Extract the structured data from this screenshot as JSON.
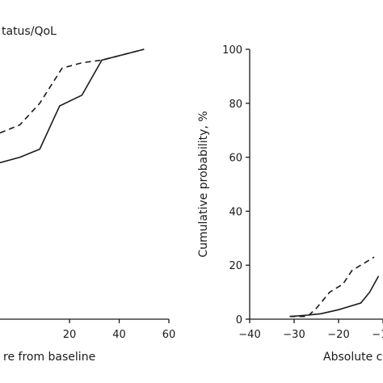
{
  "chart_data": [
    {
      "type": "line",
      "title": "tatus/QoL",
      "xlabel": "re from baseline",
      "ylabel": "",
      "xlim": [
        -8,
        60
      ],
      "ylim": [
        0,
        100
      ],
      "xticks": [
        20,
        40,
        60
      ],
      "yticks": [],
      "grid": false,
      "series": [
        {
          "style": "solid",
          "x": [
            -8,
            0,
            8,
            16,
            25,
            33,
            50
          ],
          "y": [
            58,
            60,
            63,
            79,
            83,
            96,
            100
          ]
        },
        {
          "style": "dashed",
          "x": [
            -8,
            0,
            8,
            17,
            25,
            33,
            50
          ],
          "y": [
            69,
            72,
            80,
            93,
            95,
            96,
            100
          ]
        }
      ]
    },
    {
      "type": "line",
      "title": "",
      "xlabel": "Absolute c",
      "ylabel": "Cumulative probability, %",
      "xlim": [
        -40,
        -10
      ],
      "ylim": [
        0,
        100
      ],
      "xticks": [
        -40,
        -30,
        -20,
        -10
      ],
      "yticks": [
        0,
        20,
        40,
        60,
        80,
        100
      ],
      "grid": false,
      "series": [
        {
          "style": "solid",
          "x": [
            -31,
            -27,
            -24,
            -20,
            -15,
            -13,
            -11
          ],
          "y": [
            1,
            1.5,
            2,
            3.5,
            6,
            10,
            16
          ]
        },
        {
          "style": "dashed",
          "x": [
            -31,
            -27,
            -25,
            -22,
            -19,
            -17,
            -14,
            -12
          ],
          "y": [
            1,
            1,
            4,
            10,
            13,
            18,
            21,
            23
          ]
        }
      ]
    }
  ]
}
